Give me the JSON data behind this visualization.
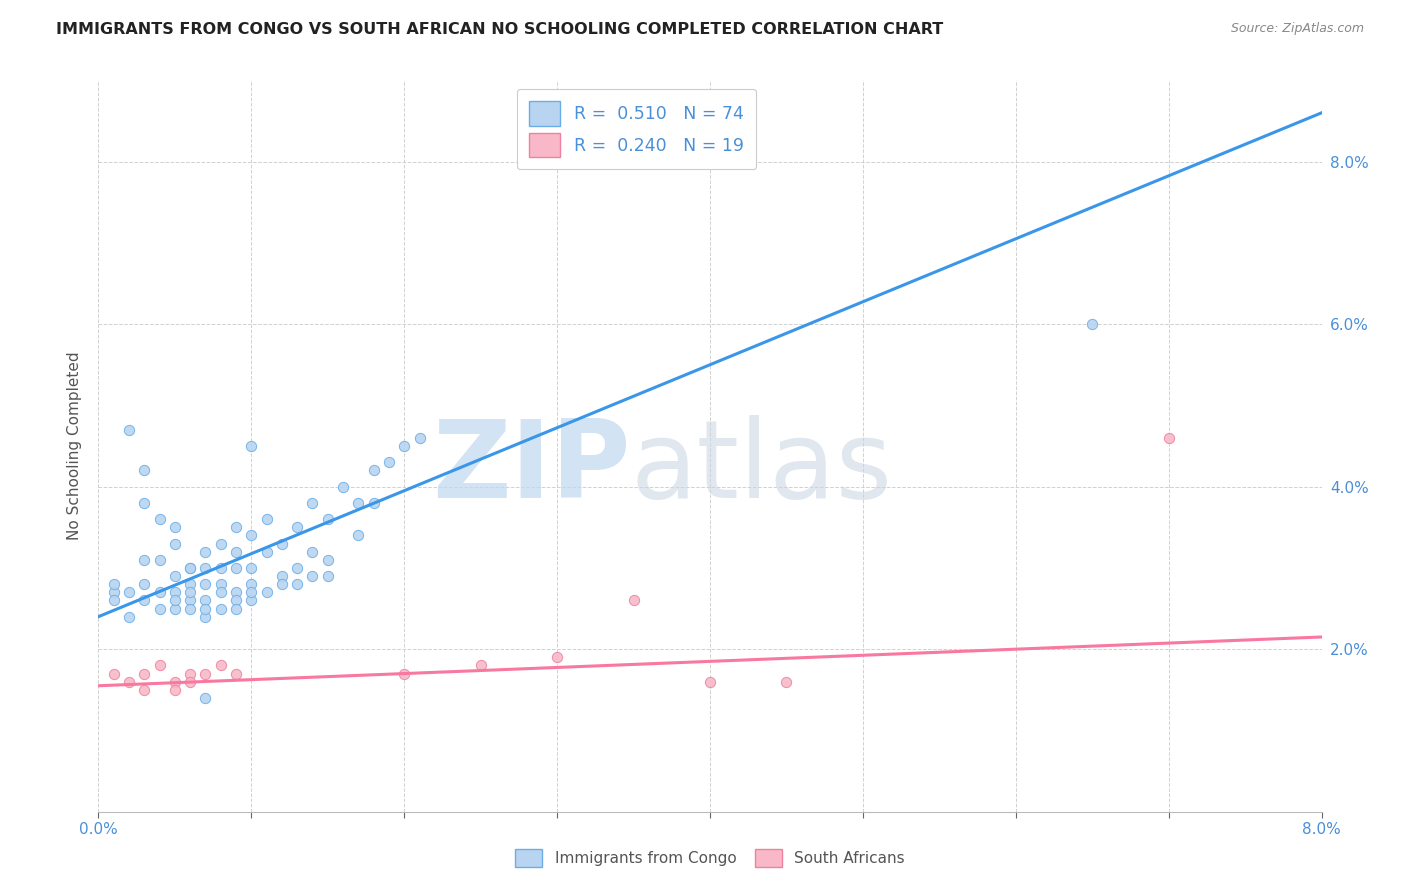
{
  "title": "IMMIGRANTS FROM CONGO VS SOUTH AFRICAN NO SCHOOLING COMPLETED CORRELATION CHART",
  "source": "Source: ZipAtlas.com",
  "ylabel": "No Schooling Completed",
  "xmin": 0.0,
  "xmax": 0.08,
  "ymin": 0.0,
  "ymax": 0.09,
  "color_congo": "#b8d4f0",
  "color_sa": "#f8b8c8",
  "edge_congo": "#6aaee8",
  "edge_sa": "#f080a0",
  "line_congo": "#3a96e8",
  "line_sa": "#f878a0",
  "scatter_congo_x": [
    0.001,
    0.002,
    0.003,
    0.003,
    0.004,
    0.004,
    0.005,
    0.005,
    0.006,
    0.006,
    0.006,
    0.007,
    0.007,
    0.007,
    0.007,
    0.008,
    0.008,
    0.008,
    0.008,
    0.009,
    0.009,
    0.009,
    0.009,
    0.01,
    0.01,
    0.01,
    0.011,
    0.011,
    0.012,
    0.012,
    0.013,
    0.013,
    0.014,
    0.014,
    0.015,
    0.015,
    0.016,
    0.017,
    0.017,
    0.018,
    0.018,
    0.019,
    0.02,
    0.021,
    0.001,
    0.002,
    0.003,
    0.004,
    0.005,
    0.005,
    0.006,
    0.006,
    0.007,
    0.008,
    0.009,
    0.009,
    0.01,
    0.01,
    0.011,
    0.012,
    0.013,
    0.014,
    0.015,
    0.001,
    0.002,
    0.003,
    0.003,
    0.004,
    0.005,
    0.005,
    0.006,
    0.007,
    0.01,
    0.007,
    0.065
  ],
  "scatter_congo_y": [
    0.027,
    0.024,
    0.031,
    0.028,
    0.025,
    0.031,
    0.029,
    0.025,
    0.03,
    0.028,
    0.026,
    0.032,
    0.028,
    0.026,
    0.024,
    0.033,
    0.03,
    0.028,
    0.025,
    0.035,
    0.032,
    0.03,
    0.027,
    0.034,
    0.03,
    0.026,
    0.036,
    0.032,
    0.033,
    0.029,
    0.035,
    0.028,
    0.038,
    0.032,
    0.036,
    0.031,
    0.04,
    0.038,
    0.034,
    0.042,
    0.038,
    0.043,
    0.045,
    0.046,
    0.026,
    0.027,
    0.026,
    0.027,
    0.027,
    0.026,
    0.027,
    0.025,
    0.025,
    0.027,
    0.026,
    0.025,
    0.028,
    0.027,
    0.027,
    0.028,
    0.03,
    0.029,
    0.029,
    0.028,
    0.047,
    0.042,
    0.038,
    0.036,
    0.035,
    0.033,
    0.03,
    0.03,
    0.045,
    0.014,
    0.06
  ],
  "scatter_sa_x": [
    0.001,
    0.002,
    0.003,
    0.003,
    0.004,
    0.005,
    0.005,
    0.006,
    0.006,
    0.007,
    0.008,
    0.009,
    0.02,
    0.025,
    0.03,
    0.035,
    0.04,
    0.045,
    0.07
  ],
  "scatter_sa_y": [
    0.017,
    0.016,
    0.017,
    0.015,
    0.018,
    0.016,
    0.015,
    0.017,
    0.016,
    0.017,
    0.018,
    0.017,
    0.017,
    0.018,
    0.019,
    0.026,
    0.016,
    0.016,
    0.046
  ],
  "congo_line_y0": 0.024,
  "congo_line_y1": 0.086,
  "sa_line_y0": 0.0155,
  "sa_line_y1": 0.0215,
  "bg": "#ffffff",
  "grid_color": "#cccccc",
  "ytick_color": "#4a90d9",
  "xtick_color": "#4a90d9"
}
